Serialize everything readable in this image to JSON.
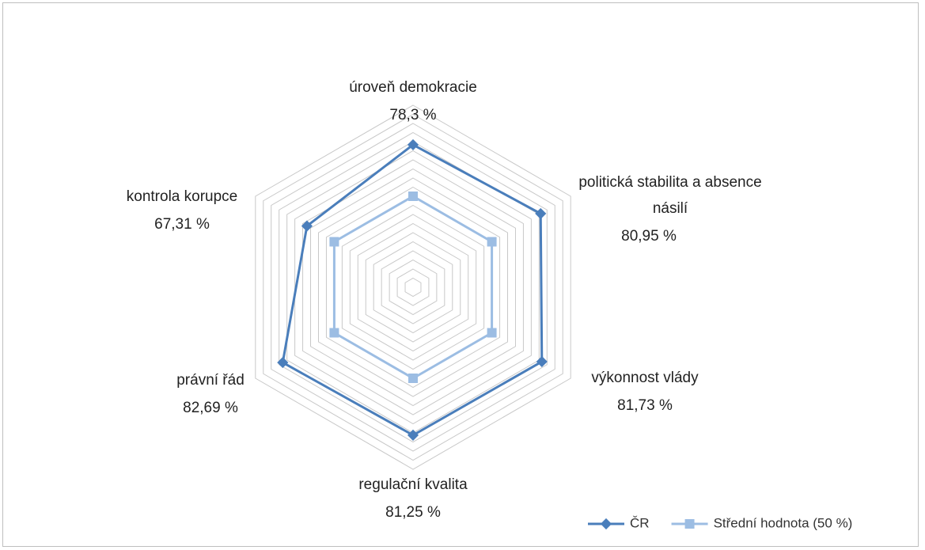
{
  "chart_data": {
    "type": "radar",
    "categories": [
      "úroveň demokracie",
      "politická stabilita a absence násilí",
      "výkonnost vlády",
      "regulační kvalita",
      "právní řád",
      "kontrola korupce"
    ],
    "series": [
      {
        "name": "ČR",
        "color": "#4a7ebb",
        "values": [
          78.3,
          80.95,
          81.73,
          81.25,
          82.69,
          67.31
        ],
        "value_labels": [
          "78,3 %",
          "80,95 %",
          "81,73 %",
          "81,25 %",
          "82,69 %",
          "67,31 %"
        ]
      },
      {
        "name": "Střední hodnota (50 %)",
        "color": "#9cbde3",
        "values": [
          50,
          50,
          50,
          50,
          50,
          50
        ]
      }
    ],
    "ylim": [
      0,
      100
    ],
    "yticks": [
      0,
      5,
      10,
      15,
      20,
      25,
      30,
      35,
      40,
      45,
      50,
      55,
      60,
      65,
      70,
      75,
      80,
      85,
      90,
      95,
      100
    ],
    "grid": true,
    "legend": "bottom-right"
  }
}
